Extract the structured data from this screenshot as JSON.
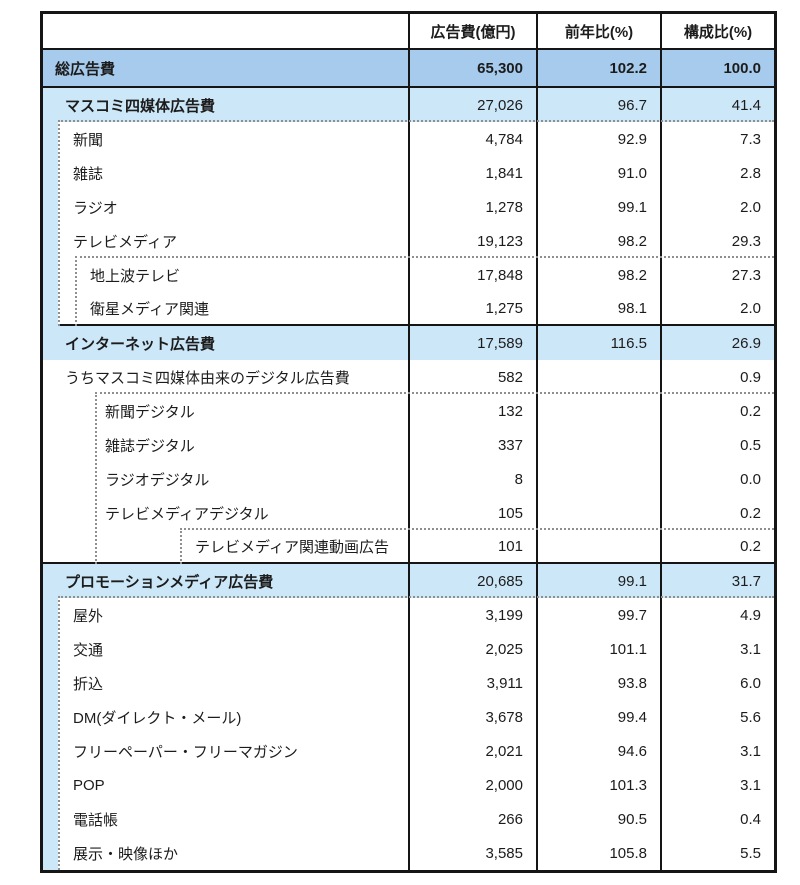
{
  "table": {
    "columns": [
      "",
      "広告費(億円)",
      "前年比(%)",
      "構成比(%)"
    ],
    "rows": [
      {
        "label": "総広告費",
        "cost": "65,300",
        "yoy": "102.2",
        "share": "100.0"
      },
      {
        "label": "マスコミ四媒体広告費",
        "cost": "27,026",
        "yoy": "96.7",
        "share": "41.4"
      },
      {
        "label": "新聞",
        "cost": "4,784",
        "yoy": "92.9",
        "share": "7.3"
      },
      {
        "label": "雑誌",
        "cost": "1,841",
        "yoy": "91.0",
        "share": "2.8"
      },
      {
        "label": "ラジオ",
        "cost": "1,278",
        "yoy": "99.1",
        "share": "2.0"
      },
      {
        "label": "テレビメディア",
        "cost": "19,123",
        "yoy": "98.2",
        "share": "29.3"
      },
      {
        "label": "地上波テレビ",
        "cost": "17,848",
        "yoy": "98.2",
        "share": "27.3"
      },
      {
        "label": "衛星メディア関連",
        "cost": "1,275",
        "yoy": "98.1",
        "share": "2.0"
      },
      {
        "label": "インターネット広告費",
        "cost": "17,589",
        "yoy": "116.5",
        "share": "26.9"
      },
      {
        "label": "うちマスコミ四媒体由来のデジタル広告費",
        "cost": "582",
        "yoy": "",
        "share": "0.9"
      },
      {
        "label": "新聞デジタル",
        "cost": "132",
        "yoy": "",
        "share": "0.2"
      },
      {
        "label": "雑誌デジタル",
        "cost": "337",
        "yoy": "",
        "share": "0.5"
      },
      {
        "label": "ラジオデジタル",
        "cost": "8",
        "yoy": "",
        "share": "0.0"
      },
      {
        "label": "テレビメディアデジタル",
        "cost": "105",
        "yoy": "",
        "share": "0.2"
      },
      {
        "label": "テレビメディア関連動画広告",
        "cost": "101",
        "yoy": "",
        "share": "0.2"
      },
      {
        "label": "プロモーションメディア広告費",
        "cost": "20,685",
        "yoy": "99.1",
        "share": "31.7"
      },
      {
        "label": "屋外",
        "cost": "3,199",
        "yoy": "99.7",
        "share": "4.9"
      },
      {
        "label": "交通",
        "cost": "2,025",
        "yoy": "101.1",
        "share": "3.1"
      },
      {
        "label": "折込",
        "cost": "3,911",
        "yoy": "93.8",
        "share": "6.0"
      },
      {
        "label": "DM(ダイレクト・メール)",
        "cost": "3,678",
        "yoy": "99.4",
        "share": "5.6"
      },
      {
        "label": "フリーペーパー・フリーマガジン",
        "cost": "2,021",
        "yoy": "94.6",
        "share": "3.1"
      },
      {
        "label": "POP",
        "cost": "2,000",
        "yoy": "101.3",
        "share": "3.1"
      },
      {
        "label": "電話帳",
        "cost": "266",
        "yoy": "90.5",
        "share": "0.4"
      },
      {
        "label": "展示・映像ほか",
        "cost": "3,585",
        "yoy": "105.8",
        "share": "5.5"
      }
    ]
  },
  "colors": {
    "total_row_bg": "#a6cbed",
    "section_row_bg": "#cce7f8",
    "grid_line": "#151515",
    "dotted_line": "#8f8f8f"
  },
  "chart_data": {
    "type": "table",
    "title": "",
    "columns": [
      "",
      "広告費(億円)",
      "前年比(%)",
      "構成比(%)"
    ],
    "rows": [
      {
        "label": "総広告費",
        "cost_oku_yen": 65300,
        "yoy_pct": 102.2,
        "share_pct": 100.0,
        "level": 0
      },
      {
        "label": "マスコミ四媒体広告費",
        "cost_oku_yen": 27026,
        "yoy_pct": 96.7,
        "share_pct": 41.4,
        "level": 1
      },
      {
        "label": "新聞",
        "cost_oku_yen": 4784,
        "yoy_pct": 92.9,
        "share_pct": 7.3,
        "level": 2
      },
      {
        "label": "雑誌",
        "cost_oku_yen": 1841,
        "yoy_pct": 91.0,
        "share_pct": 2.8,
        "level": 2
      },
      {
        "label": "ラジオ",
        "cost_oku_yen": 1278,
        "yoy_pct": 99.1,
        "share_pct": 2.0,
        "level": 2
      },
      {
        "label": "テレビメディア",
        "cost_oku_yen": 19123,
        "yoy_pct": 98.2,
        "share_pct": 29.3,
        "level": 2
      },
      {
        "label": "地上波テレビ",
        "cost_oku_yen": 17848,
        "yoy_pct": 98.2,
        "share_pct": 27.3,
        "level": 3
      },
      {
        "label": "衛星メディア関連",
        "cost_oku_yen": 1275,
        "yoy_pct": 98.1,
        "share_pct": 2.0,
        "level": 3
      },
      {
        "label": "インターネット広告費",
        "cost_oku_yen": 17589,
        "yoy_pct": 116.5,
        "share_pct": 26.9,
        "level": 1
      },
      {
        "label": "うちマスコミ四媒体由来のデジタル広告費",
        "cost_oku_yen": 582,
        "yoy_pct": null,
        "share_pct": 0.9,
        "level": 1
      },
      {
        "label": "新聞デジタル",
        "cost_oku_yen": 132,
        "yoy_pct": null,
        "share_pct": 0.2,
        "level": 2
      },
      {
        "label": "雑誌デジタル",
        "cost_oku_yen": 337,
        "yoy_pct": null,
        "share_pct": 0.5,
        "level": 2
      },
      {
        "label": "ラジオデジタル",
        "cost_oku_yen": 8,
        "yoy_pct": null,
        "share_pct": 0.0,
        "level": 2
      },
      {
        "label": "テレビメディアデジタル",
        "cost_oku_yen": 105,
        "yoy_pct": null,
        "share_pct": 0.2,
        "level": 2
      },
      {
        "label": "テレビメディア関連動画広告",
        "cost_oku_yen": 101,
        "yoy_pct": null,
        "share_pct": 0.2,
        "level": 3
      },
      {
        "label": "プロモーションメディア広告費",
        "cost_oku_yen": 20685,
        "yoy_pct": 99.1,
        "share_pct": 31.7,
        "level": 1
      },
      {
        "label": "屋外",
        "cost_oku_yen": 3199,
        "yoy_pct": 99.7,
        "share_pct": 4.9,
        "level": 2
      },
      {
        "label": "交通",
        "cost_oku_yen": 2025,
        "yoy_pct": 101.1,
        "share_pct": 3.1,
        "level": 2
      },
      {
        "label": "折込",
        "cost_oku_yen": 3911,
        "yoy_pct": 93.8,
        "share_pct": 6.0,
        "level": 2
      },
      {
        "label": "DM(ダイレクト・メール)",
        "cost_oku_yen": 3678,
        "yoy_pct": 99.4,
        "share_pct": 5.6,
        "level": 2
      },
      {
        "label": "フリーペーパー・フリーマガジン",
        "cost_oku_yen": 2021,
        "yoy_pct": 94.6,
        "share_pct": 3.1,
        "level": 2
      },
      {
        "label": "POP",
        "cost_oku_yen": 2000,
        "yoy_pct": 101.3,
        "share_pct": 3.1,
        "level": 2
      },
      {
        "label": "電話帳",
        "cost_oku_yen": 266,
        "yoy_pct": 90.5,
        "share_pct": 0.4,
        "level": 2
      },
      {
        "label": "展示・映像ほか",
        "cost_oku_yen": 3585,
        "yoy_pct": 105.8,
        "share_pct": 5.5,
        "level": 2
      }
    ]
  }
}
